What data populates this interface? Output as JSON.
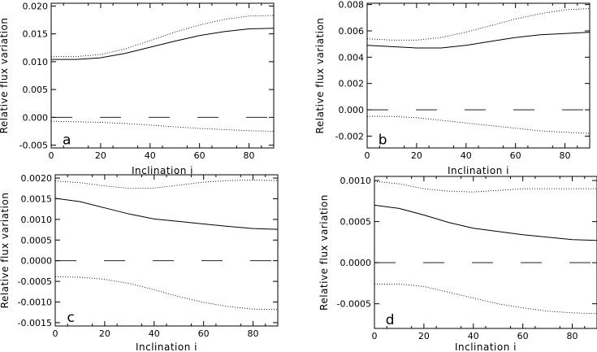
{
  "chart_data": [
    {
      "type": "line",
      "panel_label": "a",
      "xlabel": "Inclination i",
      "ylabel": "Relative flux variation",
      "xlim": [
        0,
        90
      ],
      "ylim": [
        -0.0055,
        0.0205
      ],
      "xticks": [
        0,
        20,
        40,
        60,
        80
      ],
      "xtick_labels": [
        "0",
        "20",
        "40",
        "60",
        "80"
      ],
      "yticks": [
        -0.005,
        0.0,
        0.005,
        0.01,
        0.015,
        0.02
      ],
      "ytick_labels": [
        "-0.005",
        "0.000",
        "0.005",
        "0.010",
        "0.015",
        "0.020"
      ],
      "x": [
        0,
        10,
        20,
        30,
        40,
        50,
        60,
        70,
        80,
        90
      ],
      "series": [
        {
          "style": "dotted",
          "values": [
            0.0109,
            0.0109,
            0.0113,
            0.0123,
            0.0138,
            0.0153,
            0.0166,
            0.0176,
            0.0182,
            0.0183
          ]
        },
        {
          "style": "solid",
          "values": [
            0.0104,
            0.0104,
            0.0107,
            0.0115,
            0.0126,
            0.0137,
            0.0147,
            0.0154,
            0.0159,
            0.016
          ]
        },
        {
          "style": "dashed",
          "values": [
            0.0,
            0.0,
            0.0,
            0.0,
            0.0,
            0.0,
            0.0,
            0.0,
            0.0,
            0.0
          ]
        },
        {
          "style": "dotted",
          "values": [
            -0.0007,
            -0.0008,
            -0.0009,
            -0.0011,
            -0.0014,
            -0.0017,
            -0.002,
            -0.0022,
            -0.0024,
            -0.0025
          ]
        }
      ]
    },
    {
      "type": "line",
      "panel_label": "b",
      "xlabel": "Inclination i",
      "ylabel": "Relative flux variation",
      "xlim": [
        0,
        90
      ],
      "ylim": [
        -0.0029,
        0.0081
      ],
      "xticks": [
        0,
        20,
        40,
        60,
        80
      ],
      "xtick_labels": [
        "0",
        "20",
        "40",
        "60",
        "80"
      ],
      "yticks": [
        -0.002,
        0.0,
        0.002,
        0.004,
        0.006,
        0.008
      ],
      "ytick_labels": [
        "-0.002",
        "0.000",
        "0.002",
        "0.004",
        "0.006",
        "0.008"
      ],
      "x": [
        0,
        10,
        20,
        30,
        40,
        50,
        60,
        70,
        80,
        90
      ],
      "series": [
        {
          "style": "dotted",
          "values": [
            0.0054,
            0.0053,
            0.0053,
            0.0055,
            0.0059,
            0.0064,
            0.0069,
            0.0073,
            0.0076,
            0.0077
          ]
        },
        {
          "style": "solid",
          "values": [
            0.0049,
            0.0048,
            0.0047,
            0.0047,
            0.0049,
            0.0052,
            0.0055,
            0.0057,
            0.0058,
            0.0059
          ]
        },
        {
          "style": "dashed",
          "values": [
            0.0,
            0.0,
            0.0,
            0.0,
            0.0,
            0.0,
            0.0,
            0.0,
            0.0,
            0.0
          ]
        },
        {
          "style": "dotted",
          "values": [
            -0.0005,
            -0.0005,
            -0.0006,
            -0.0008,
            -0.001,
            -0.0012,
            -0.0014,
            -0.0016,
            -0.0017,
            -0.0018
          ]
        }
      ]
    },
    {
      "type": "line",
      "panel_label": "c",
      "xlabel": "Inclination i",
      "ylabel": "Relative flux variation",
      "xlim": [
        0,
        90
      ],
      "ylim": [
        -0.00158,
        0.00208
      ],
      "xticks": [
        0,
        20,
        40,
        60,
        80
      ],
      "xtick_labels": [
        "0",
        "20",
        "40",
        "60",
        "80"
      ],
      "yticks": [
        -0.0015,
        -0.001,
        -0.0005,
        0.0,
        0.0005,
        0.001,
        0.0015,
        0.002
      ],
      "ytick_labels": [
        "-0.0015",
        "-0.0010",
        "-0.0005",
        "0.0000",
        "0.0005",
        "0.0010",
        "0.0015",
        "0.0020"
      ],
      "x": [
        0,
        10,
        20,
        30,
        40,
        50,
        60,
        70,
        80,
        90
      ],
      "series": [
        {
          "style": "dotted",
          "values": [
            0.00193,
            0.00189,
            0.00181,
            0.00175,
            0.00176,
            0.00183,
            0.0019,
            0.00194,
            0.00195,
            0.00194
          ]
        },
        {
          "style": "solid",
          "values": [
            0.00151,
            0.00143,
            0.00128,
            0.00113,
            0.00101,
            0.00095,
            0.00089,
            0.00083,
            0.00078,
            0.00076
          ]
        },
        {
          "style": "dashed",
          "values": [
            0.0,
            0.0,
            0.0,
            0.0,
            0.0,
            0.0,
            0.0,
            0.0,
            0.0,
            0.0
          ]
        },
        {
          "style": "dotted",
          "values": [
            -0.00039,
            -0.0004,
            -0.00045,
            -0.00055,
            -0.0007,
            -0.00087,
            -0.00101,
            -0.00111,
            -0.00117,
            -0.00118
          ]
        }
      ]
    },
    {
      "type": "line",
      "panel_label": "d",
      "xlabel": "Inclination i",
      "ylabel": "Relative flux variation",
      "xlim": [
        0,
        90
      ],
      "ylim": [
        -0.0008,
        0.00105
      ],
      "xticks": [
        0,
        20,
        40,
        60,
        80
      ],
      "xtick_labels": [
        "0",
        "20",
        "40",
        "60",
        "80"
      ],
      "yticks": [
        -0.0005,
        0.0,
        0.0005,
        0.001
      ],
      "ytick_labels": [
        "-0.0005",
        "0.0000",
        "0.0005",
        "0.0010"
      ],
      "x": [
        0,
        10,
        20,
        30,
        40,
        50,
        60,
        70,
        80,
        90
      ],
      "series": [
        {
          "style": "dotted",
          "values": [
            0.00099,
            0.00096,
            0.0009,
            0.00087,
            0.00086,
            0.00088,
            0.0009,
            0.0009,
            0.0009,
            0.0009
          ]
        },
        {
          "style": "solid",
          "values": [
            0.0007,
            0.00066,
            0.00058,
            0.00049,
            0.00042,
            0.00038,
            0.00034,
            0.00031,
            0.00028,
            0.00027
          ]
        },
        {
          "style": "dashed",
          "values": [
            0.0,
            0.0,
            0.0,
            0.0,
            0.0,
            0.0,
            0.0,
            0.0,
            0.0,
            0.0
          ]
        },
        {
          "style": "dotted",
          "values": [
            -0.00026,
            -0.00026,
            -0.00029,
            -0.00036,
            -0.00043,
            -0.0005,
            -0.00055,
            -0.00059,
            -0.00061,
            -0.00062
          ]
        }
      ]
    }
  ]
}
